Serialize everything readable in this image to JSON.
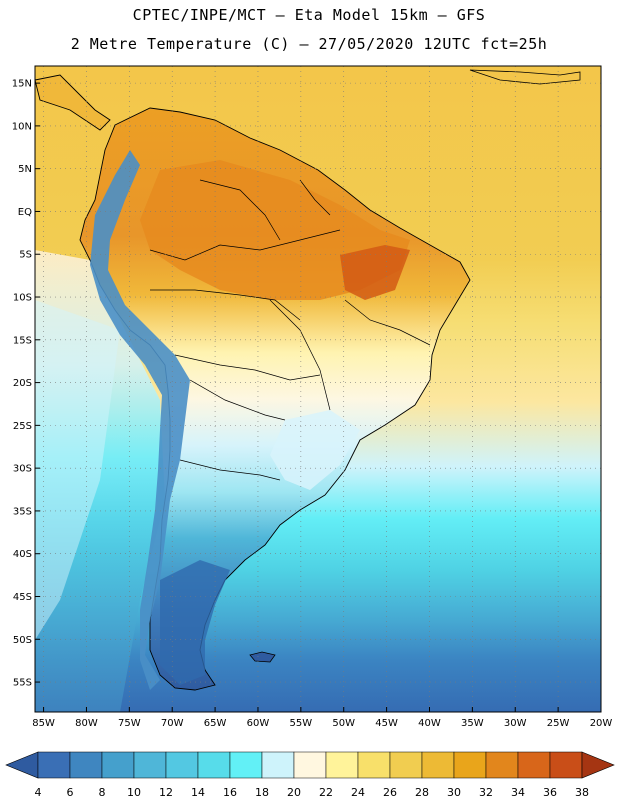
{
  "header": {
    "line1": "CPTEC/INPE/MCT –  Eta Model 15km – GFS",
    "line2": "2 Metre Temperature (C) – 27/05/2020 12UTC fct=25h"
  },
  "map": {
    "lon_range": [
      -86,
      -20
    ],
    "lat_range": [
      -58.5,
      17
    ],
    "lat_labels": [
      "15N",
      "10N",
      "5N",
      "EQ",
      "5S",
      "10S",
      "15S",
      "20S",
      "25S",
      "30S",
      "35S",
      "40S",
      "45S",
      "50S",
      "55S"
    ],
    "lat_values": [
      15,
      10,
      5,
      0,
      -5,
      -10,
      -15,
      -20,
      -25,
      -30,
      -35,
      -40,
      -45,
      -50,
      -55
    ],
    "lon_labels": [
      "85W",
      "80W",
      "75W",
      "70W",
      "65W",
      "60W",
      "55W",
      "50W",
      "45W",
      "40W",
      "35W",
      "30W",
      "25W",
      "20W"
    ],
    "lon_values": [
      -85,
      -80,
      -75,
      -70,
      -65,
      -60,
      -55,
      -50,
      -45,
      -40,
      -35,
      -30,
      -25,
      -20
    ]
  },
  "colorbar": {
    "levels": [
      "4",
      "6",
      "8",
      "10",
      "12",
      "14",
      "16",
      "18",
      "20",
      "22",
      "24",
      "26",
      "28",
      "30",
      "32",
      "34",
      "36",
      "38"
    ],
    "colors": [
      "#3a6fb5",
      "#3f86c0",
      "#45a0cc",
      "#4fb6d8",
      "#53c8e2",
      "#57dcea",
      "#62f0f6",
      "#cef3fb",
      "#fff7e0",
      "#fff39a",
      "#f8e06a",
      "#f1cd50",
      "#edba35",
      "#e9a51b",
      "#e2861c",
      "#d8661a",
      "#c94e18",
      "#b03a10"
    ],
    "left_arrow_color": "#2f5ba0",
    "right_arrow_color": "#a53512"
  }
}
